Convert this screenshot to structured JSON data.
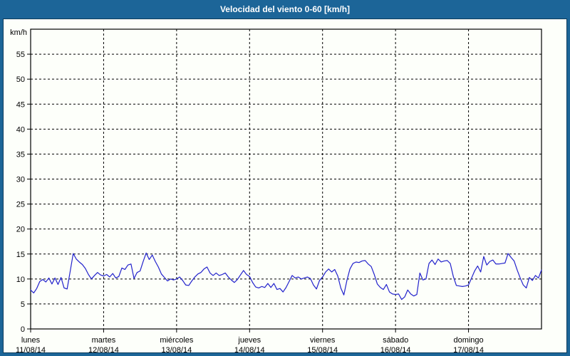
{
  "window": {
    "title": "Velocidad del viento 0-60 [km/h]",
    "colors": {
      "frame": "#1c6598",
      "frame_dark_line": "#0d3c5c",
      "content_background": "#fdfffa",
      "title_text": "#ffffff",
      "axis": "#000000",
      "grid": "#000000",
      "tick_label": "#000000"
    }
  },
  "chart_data": {
    "type": "line",
    "title": "Velocidad del viento 0-60 [km/h]",
    "ylabel": "km/h",
    "ylim": [
      0,
      60
    ],
    "y_ticks": [
      0,
      5,
      10,
      15,
      20,
      25,
      30,
      35,
      40,
      45,
      50,
      55
    ],
    "grid_style": "dashed",
    "legend": "none",
    "line_color": "#2222cc",
    "x_days": [
      {
        "name": "lunes",
        "date": "11/08/14"
      },
      {
        "name": "martes",
        "date": "12/08/14"
      },
      {
        "name": "miércoles",
        "date": "13/08/14"
      },
      {
        "name": "jueves",
        "date": "14/08/14"
      },
      {
        "name": "viernes",
        "date": "15/08/14"
      },
      {
        "name": "sábado",
        "date": "16/08/14"
      },
      {
        "name": "domingo",
        "date": "17/08/14"
      }
    ],
    "hours_per_day": 24,
    "series": [
      {
        "name": "Velocidad del viento (km/h)",
        "values": [
          7.8,
          7.2,
          8.1,
          9.5,
          9.9,
          9.4,
          10.2,
          9.0,
          10.2,
          8.9,
          10.3,
          8.2,
          8.0,
          11.5,
          15.1,
          14.0,
          13.4,
          12.9,
          12.1,
          10.9,
          10.0,
          10.7,
          11.3,
          10.8,
          10.6,
          10.9,
          10.4,
          11.1,
          10.2,
          10.5,
          12.2,
          11.9,
          12.8,
          13.0,
          10.1,
          11.3,
          11.6,
          13.5,
          15.2,
          13.9,
          14.8,
          13.5,
          12.4,
          11.0,
          10.3,
          9.6,
          10.0,
          9.8,
          10.0,
          10.4,
          9.7,
          8.8,
          8.7,
          9.6,
          10.4,
          11.0,
          11.3,
          12.0,
          12.4,
          11.2,
          10.7,
          11.2,
          10.7,
          10.9,
          11.2,
          10.4,
          9.8,
          9.3,
          9.9,
          10.8,
          11.7,
          10.9,
          10.5,
          9.3,
          8.4,
          8.2,
          8.5,
          8.3,
          9.1,
          8.3,
          9.1,
          7.9,
          8.1,
          7.4,
          8.3,
          9.5,
          10.7,
          10.2,
          10.4,
          10.0,
          10.2,
          10.4,
          10.1,
          8.8,
          8.0,
          9.7,
          10.4,
          11.4,
          12.0,
          11.4,
          11.9,
          10.6,
          8.2,
          6.8,
          9.7,
          12.0,
          13.1,
          13.4,
          13.3,
          13.6,
          13.7,
          13.0,
          12.5,
          10.9,
          9.0,
          8.3,
          7.9,
          8.9,
          7.4,
          7.0,
          6.9,
          7.0,
          5.9,
          6.4,
          7.8,
          7.0,
          6.6,
          6.9,
          11.2,
          9.8,
          10.0,
          13.1,
          13.8,
          12.9,
          14.0,
          13.4,
          13.6,
          13.7,
          13.1,
          10.5,
          8.7,
          8.6,
          8.5,
          8.6,
          8.8,
          10.2,
          11.6,
          12.6,
          11.4,
          14.5,
          12.8,
          13.5,
          13.8,
          13.0,
          13.0,
          13.1,
          13.2,
          15.1,
          14.3,
          13.6,
          11.8,
          10.2,
          8.8,
          8.2,
          10.3,
          9.7,
          10.7,
          10.2,
          11.8
        ]
      }
    ]
  }
}
